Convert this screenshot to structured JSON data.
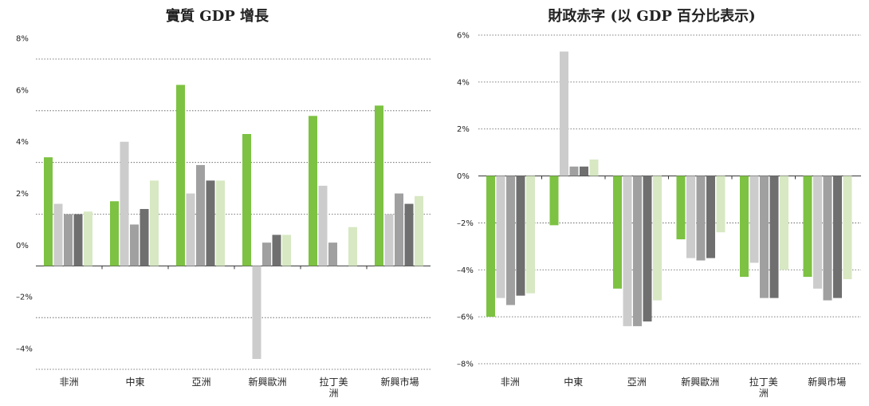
{
  "colors": {
    "series": [
      "#7dc242",
      "#cccccc",
      "#a0a0a0",
      "#6f6f6f",
      "#d7e8c3"
    ],
    "grid": "#555555",
    "axis": "#333333"
  },
  "chart_data": [
    {
      "type": "bar",
      "title": "實質 GDP 增長",
      "categories": [
        [
          "非洲"
        ],
        [
          "中東"
        ],
        [
          "亞洲"
        ],
        [
          "新興歐洲"
        ],
        [
          "拉丁美",
          "洲"
        ],
        [
          "新興市場"
        ]
      ],
      "y_ticks": [
        "8%",
        "6%",
        "4%",
        "2%",
        "0%",
        "–2%",
        "–4%"
      ],
      "ylim": [
        -4,
        8
      ],
      "series": [
        {
          "values": [
            4.2,
            2.5,
            7.0,
            5.1,
            5.8,
            6.2
          ]
        },
        {
          "values": [
            2.4,
            4.8,
            2.8,
            -3.6,
            3.1,
            2.0
          ]
        },
        {
          "values": [
            2.0,
            1.6,
            3.9,
            0.9,
            0.9,
            2.8
          ]
        },
        {
          "values": [
            2.0,
            2.2,
            3.3,
            1.2,
            0.0,
            2.4
          ]
        },
        {
          "values": [
            2.1,
            3.3,
            3.3,
            1.2,
            1.5,
            2.7
          ]
        }
      ],
      "grid": true,
      "legend": "none"
    },
    {
      "type": "bar",
      "title": "財政赤字 (以 GDP 百分比表示)",
      "categories": [
        [
          "非洲"
        ],
        [
          "中東"
        ],
        [
          "亞洲"
        ],
        [
          "新興歐洲"
        ],
        [
          "拉丁美",
          "洲"
        ],
        [
          "新興市場"
        ]
      ],
      "y_ticks": [
        "6%",
        "4%",
        "2%",
        "0%",
        "–2%",
        "–4%",
        "–6%",
        "–8%"
      ],
      "ylim": [
        -8,
        6
      ],
      "series": [
        {
          "values": [
            -6.0,
            -2.1,
            -4.8,
            -2.7,
            -4.3,
            -4.3
          ]
        },
        {
          "values": [
            -5.2,
            5.3,
            -6.4,
            -3.5,
            -3.7,
            -4.8
          ]
        },
        {
          "values": [
            -5.5,
            0.4,
            -6.4,
            -3.6,
            -5.2,
            -5.3
          ]
        },
        {
          "values": [
            -5.1,
            0.4,
            -6.2,
            -3.5,
            -5.2,
            -5.2
          ]
        },
        {
          "values": [
            -5.0,
            0.7,
            -5.3,
            -2.4,
            -4.0,
            -4.4
          ]
        }
      ],
      "grid": true,
      "legend": "none"
    }
  ]
}
